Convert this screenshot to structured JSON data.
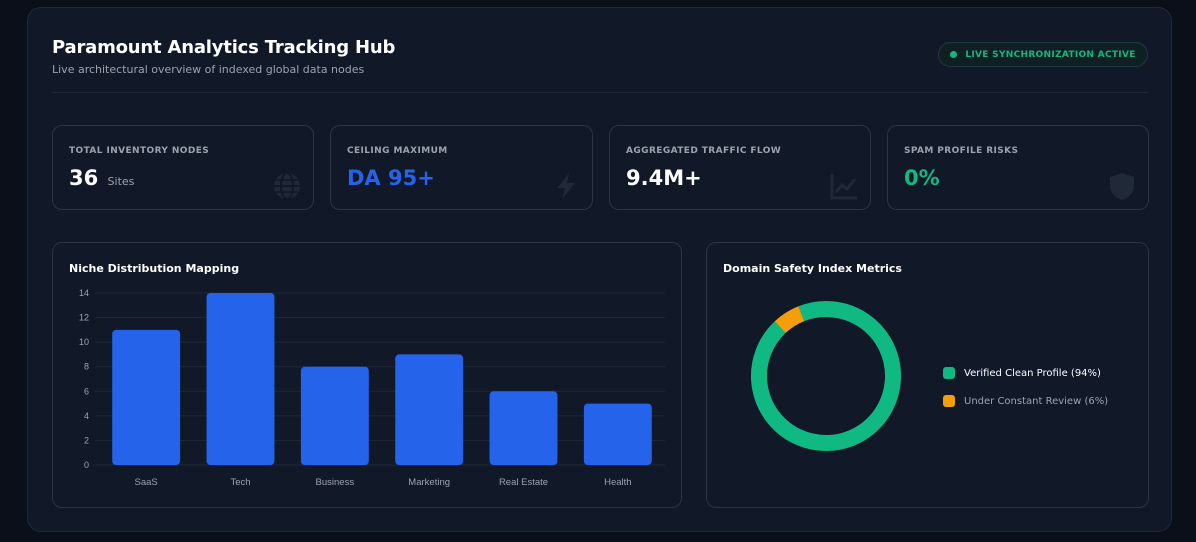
{
  "header": {
    "title": "Paramount Analytics Tracking Hub",
    "subtitle": "Live architectural overview of indexed global data nodes",
    "status_badge": "LIVE SYNCHRONIZATION ACTIVE",
    "status_color": "#10b981"
  },
  "kpis": [
    {
      "label": "TOTAL INVENTORY NODES",
      "value": "36",
      "unit": "Sites",
      "icon": "globe-icon",
      "color": "#ffffff"
    },
    {
      "label": "CEILING MAXIMUM",
      "value": "DA 95+",
      "unit": "",
      "icon": "bolt-icon",
      "color": "#2563eb"
    },
    {
      "label": "AGGREGATED TRAFFIC FLOW",
      "value": "9.4M+",
      "unit": "",
      "icon": "trend-chart-icon",
      "color": "#ffffff"
    },
    {
      "label": "SPAM PROFILE RISKS",
      "value": "0%",
      "unit": "",
      "icon": "shield-icon",
      "color": "#10b981"
    }
  ],
  "niche_card": {
    "title": "Niche Distribution Mapping"
  },
  "safety_card": {
    "title": "Domain Safety Index Metrics",
    "legend": [
      {
        "label": "Verified Clean Profile (94%)",
        "color": "#10b981"
      },
      {
        "label": "Under Constant Review (6%)",
        "color": "#f59e0b"
      }
    ]
  },
  "chart_data": [
    {
      "type": "bar",
      "title": "Niche Distribution Mapping",
      "categories": [
        "SaaS",
        "Tech",
        "Business",
        "Marketing",
        "Real Estate",
        "Health"
      ],
      "values": [
        11,
        14,
        8,
        9,
        6,
        5
      ],
      "ylim": [
        0,
        14
      ],
      "yticks": [
        0,
        2,
        4,
        6,
        8,
        10,
        12,
        14
      ],
      "grid": true,
      "bar_color": "#2563eb"
    },
    {
      "type": "pie",
      "title": "Domain Safety Index Metrics",
      "donut": true,
      "categories": [
        "Verified Clean Profile",
        "Under Constant Review"
      ],
      "values": [
        94,
        6
      ],
      "colors": [
        "#10b981",
        "#f59e0b"
      ],
      "legend_position": "right"
    }
  ]
}
